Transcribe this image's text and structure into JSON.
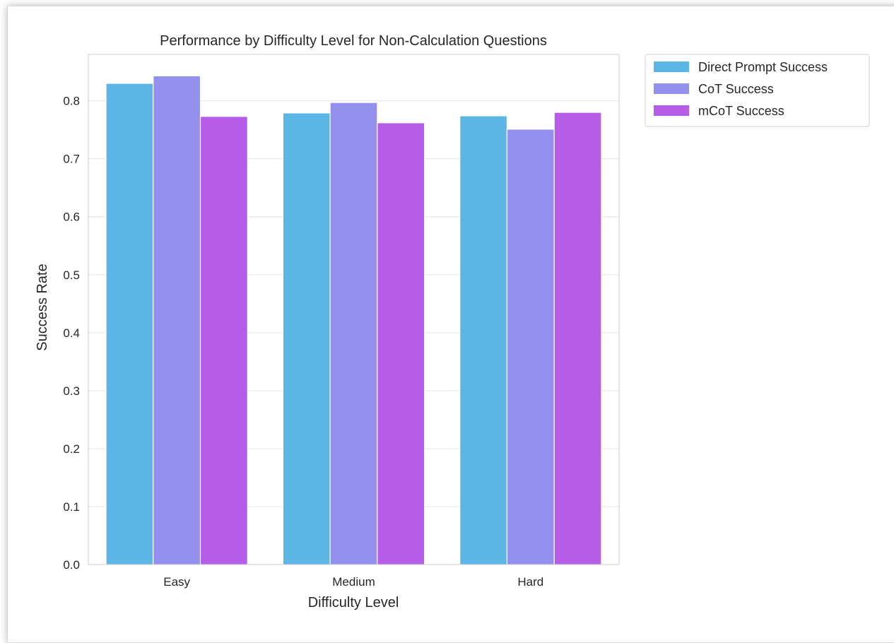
{
  "chart_data": {
    "type": "bar",
    "title": "Performance by Difficulty Level for Non-Calculation Questions",
    "xlabel": "Difficulty Level",
    "ylabel": "Success Rate",
    "categories": [
      "Easy",
      "Medium",
      "Hard"
    ],
    "ylim": [
      0,
      0.88
    ],
    "yticks": [
      "0.0",
      "0.1",
      "0.2",
      "0.3",
      "0.4",
      "0.5",
      "0.6",
      "0.7",
      "0.8"
    ],
    "grid": true,
    "legend_position": "outside-top-right",
    "series": [
      {
        "name": "Direct Prompt Success",
        "color": "#5bb6e5",
        "values": [
          0.83,
          0.779,
          0.774
        ]
      },
      {
        "name": "CoT Success",
        "color": "#9390ee",
        "values": [
          0.843,
          0.797,
          0.751
        ]
      },
      {
        "name": "mCoT Success",
        "color": "#b55ce8",
        "values": [
          0.773,
          0.762,
          0.78
        ]
      }
    ]
  }
}
